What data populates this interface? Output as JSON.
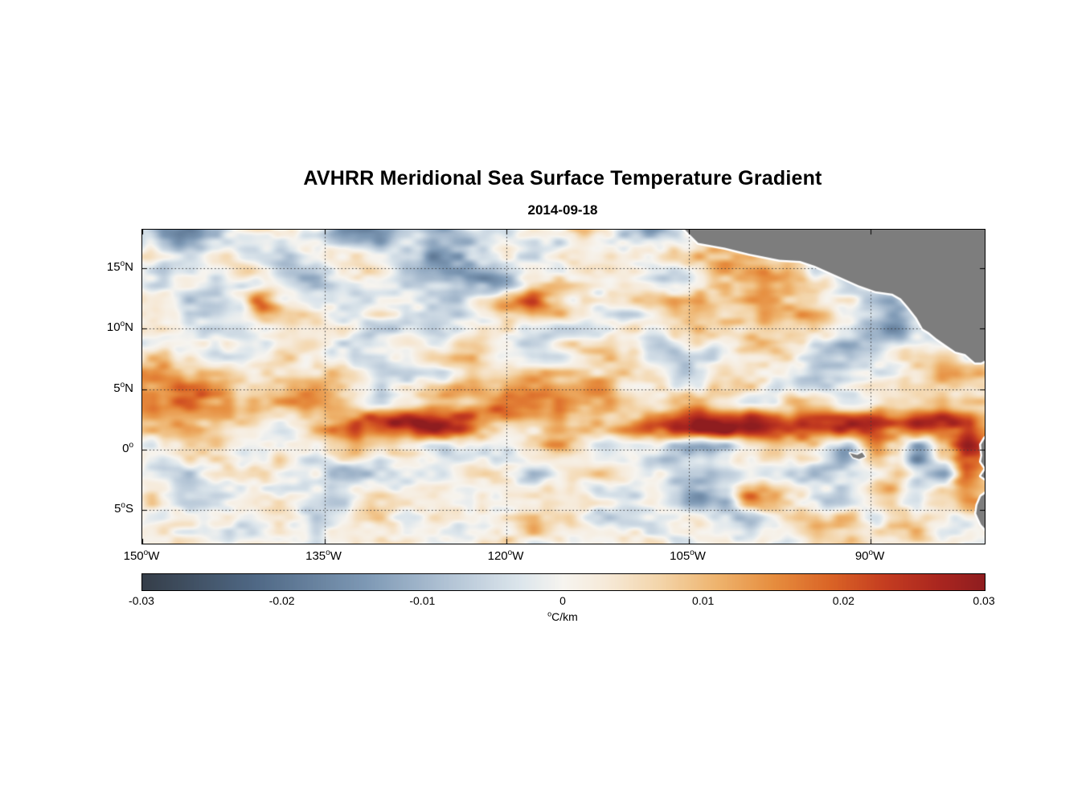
{
  "title": "AVHRR Meridional Sea Surface Temperature Gradient",
  "subtitle": "2014-09-18",
  "chart_data": {
    "type": "heatmap",
    "title": "AVHRR Meridional Sea Surface Temperature Gradient",
    "date": "2014-09-18",
    "unit": "°C/km",
    "lon_range": [
      -150,
      -80.6
    ],
    "lat_range": [
      -7.8,
      18.2
    ],
    "x_ticks": [
      {
        "lon": -150,
        "num": "150",
        "sup": "o",
        "hem": "W"
      },
      {
        "lon": -135,
        "num": "135",
        "sup": "o",
        "hem": "W"
      },
      {
        "lon": -120,
        "num": "120",
        "sup": "o",
        "hem": "W"
      },
      {
        "lon": -105,
        "num": "105",
        "sup": "o",
        "hem": "W"
      },
      {
        "lon": -90,
        "num": "90",
        "sup": "o",
        "hem": "W"
      }
    ],
    "y_ticks": [
      {
        "lat": 15,
        "num": "15",
        "sup": "o",
        "hem": "N"
      },
      {
        "lat": 10,
        "num": "10",
        "sup": "o",
        "hem": "N"
      },
      {
        "lat": 5,
        "num": "5",
        "sup": "o",
        "hem": "N"
      },
      {
        "lat": 0,
        "num": "0",
        "sup": "o",
        "hem": ""
      },
      {
        "lat": -5,
        "num": "5",
        "sup": "o",
        "hem": "S"
      }
    ],
    "colorbar": {
      "min": -0.03,
      "max": 0.03,
      "tick_values": [
        -0.03,
        -0.02,
        -0.01,
        0,
        0.01,
        0.02,
        0.03
      ],
      "tick_labels": [
        "-0.03",
        "-0.02",
        "-0.01",
        "0",
        "0.01",
        "0.02",
        "0.03"
      ],
      "unit_sup": "o",
      "unit_text": "C/km"
    },
    "colormap_stops": [
      {
        "v": -0.03,
        "c": "#353e49"
      },
      {
        "v": -0.022,
        "c": "#4f6885"
      },
      {
        "v": -0.014,
        "c": "#7e99b5"
      },
      {
        "v": -0.008,
        "c": "#b4c5d6"
      },
      {
        "v": -0.003,
        "c": "#dde6ec"
      },
      {
        "v": 0.0,
        "c": "#f6f4ef"
      },
      {
        "v": 0.003,
        "c": "#f6ead9"
      },
      {
        "v": 0.007,
        "c": "#f3d4a8"
      },
      {
        "v": 0.011,
        "c": "#eeb36d"
      },
      {
        "v": 0.015,
        "c": "#e68d3e"
      },
      {
        "v": 0.019,
        "c": "#da6426"
      },
      {
        "v": 0.023,
        "c": "#c43c20"
      },
      {
        "v": 0.027,
        "c": "#a8251f"
      },
      {
        "v": 0.03,
        "c": "#8f1d1f"
      }
    ],
    "land_color": "#7d7d7d",
    "coastline_color": "#ffffff",
    "gridline_color": "#3c3c3c",
    "grid": {
      "lon_start": -150,
      "lon_step": 2,
      "lat_start": 18,
      "lat_step": -2,
      "cols": 36,
      "rows": 14,
      "scale": 0.001,
      "values": [
        [
          -2,
          -12,
          -14,
          -6,
          0,
          2,
          -2,
          -6,
          -10,
          -14,
          -12,
          -8,
          -10,
          -12,
          -6,
          0,
          4,
          2,
          8,
          2,
          -8,
          -10,
          -4,
          0,
          0,
          0,
          0,
          0,
          0,
          0,
          0,
          0,
          0,
          0,
          0,
          0
        ],
        [
          0,
          -6,
          -8,
          -2,
          2,
          0,
          -4,
          -2,
          2,
          4,
          -2,
          -8,
          -14,
          -10,
          -2,
          2,
          0,
          -2,
          4,
          6,
          2,
          -2,
          4,
          8,
          12,
          6,
          0,
          0,
          0,
          0,
          0,
          0,
          0,
          0,
          0,
          0
        ],
        [
          2,
          -2,
          -4,
          0,
          4,
          -2,
          -8,
          -6,
          0,
          2,
          -2,
          -4,
          -8,
          -12,
          -14,
          -8,
          0,
          4,
          2,
          -2,
          0,
          2,
          -2,
          2,
          6,
          10,
          12,
          6,
          4,
          0,
          0,
          0,
          0,
          0,
          0,
          0
        ],
        [
          0,
          2,
          -4,
          -10,
          -6,
          18,
          6,
          -2,
          0,
          -2,
          2,
          4,
          -2,
          -6,
          2,
          14,
          20,
          10,
          2,
          -2,
          0,
          4,
          10,
          12,
          10,
          8,
          12,
          10,
          4,
          0,
          -6,
          -12,
          0,
          0,
          0,
          0
        ],
        [
          -2,
          0,
          2,
          -2,
          -4,
          0,
          4,
          2,
          -2,
          -4,
          -2,
          0,
          -4,
          -2,
          0,
          2,
          -2,
          -4,
          -2,
          0,
          2,
          0,
          4,
          8,
          10,
          6,
          10,
          12,
          8,
          4,
          -10,
          -16,
          -6,
          0,
          0,
          0
        ],
        [
          2,
          4,
          0,
          -4,
          -2,
          2,
          6,
          4,
          0,
          -2,
          -4,
          -2,
          2,
          4,
          6,
          2,
          -2,
          0,
          4,
          6,
          2,
          -4,
          -6,
          -2,
          2,
          6,
          4,
          -2,
          -8,
          -12,
          -4,
          6,
          10,
          4,
          0,
          0
        ],
        [
          10,
          12,
          14,
          12,
          10,
          8,
          6,
          8,
          10,
          4,
          -4,
          -6,
          0,
          4,
          8,
          10,
          12,
          10,
          8,
          10,
          6,
          0,
          -4,
          2,
          8,
          6,
          0,
          -6,
          -8,
          -2,
          4,
          2,
          6,
          10,
          12,
          8
        ],
        [
          14,
          16,
          18,
          16,
          12,
          10,
          12,
          14,
          10,
          2,
          -2,
          2,
          8,
          12,
          16,
          20,
          22,
          18,
          14,
          16,
          12,
          6,
          10,
          12,
          8,
          2,
          -2,
          6,
          4,
          -2,
          -4,
          2,
          6,
          4,
          2,
          4
        ],
        [
          8,
          10,
          12,
          10,
          8,
          6,
          4,
          8,
          14,
          20,
          26,
          30,
          28,
          22,
          12,
          8,
          10,
          14,
          10,
          6,
          14,
          22,
          26,
          28,
          30,
          28,
          26,
          24,
          26,
          28,
          24,
          18,
          26,
          28,
          22,
          12
        ],
        [
          2,
          4,
          6,
          4,
          2,
          0,
          -2,
          2,
          6,
          10,
          8,
          4,
          -2,
          -6,
          -4,
          0,
          6,
          10,
          4,
          0,
          6,
          2,
          -8,
          -12,
          -6,
          2,
          8,
          6,
          -4,
          -8,
          10,
          4,
          -14,
          8,
          26,
          18
        ],
        [
          0,
          -2,
          -4,
          -2,
          0,
          2,
          0,
          -4,
          -8,
          -10,
          -8,
          -4,
          0,
          2,
          4,
          0,
          -4,
          -2,
          0,
          4,
          2,
          -2,
          -6,
          -4,
          0,
          2,
          -4,
          -8,
          -6,
          -2,
          2,
          6,
          -10,
          -16,
          22,
          10
        ],
        [
          2,
          0,
          -2,
          0,
          2,
          4,
          2,
          0,
          -2,
          0,
          2,
          0,
          -2,
          -4,
          -2,
          0,
          2,
          4,
          0,
          -4,
          -2,
          0,
          -6,
          -14,
          -10,
          12,
          10,
          2,
          -6,
          -2,
          4,
          8,
          2,
          6,
          14,
          8
        ],
        [
          0,
          2,
          0,
          -2,
          0,
          2,
          0,
          -2,
          0,
          2,
          4,
          2,
          0,
          -2,
          0,
          4,
          8,
          6,
          2,
          -4,
          -6,
          -2,
          0,
          2,
          -2,
          -4,
          0,
          4,
          8,
          6,
          2,
          8,
          10,
          4,
          -2,
          0
        ],
        [
          0,
          0,
          2,
          0,
          -2,
          0,
          2,
          0,
          -2,
          0,
          2,
          0,
          -2,
          0,
          2,
          4,
          2,
          0,
          -2,
          0,
          2,
          0,
          -2,
          0,
          2,
          0,
          -2,
          0,
          4,
          6,
          2,
          4,
          6,
          2,
          0,
          0
        ]
      ]
    },
    "noise": {
      "oct1": {
        "sx": 2.6,
        "sy": 1.2,
        "amp": 6
      },
      "oct2": {
        "sx": 1.05,
        "sy": 0.6,
        "amp": 3.5
      },
      "amp_scale": 0.001
    },
    "land_polygons": {
      "central_america": [
        [
          -105.4,
          18.3
        ],
        [
          -104.2,
          17.1
        ],
        [
          -102,
          16.7
        ],
        [
          -100,
          16.2
        ],
        [
          -97.5,
          15.7
        ],
        [
          -95.8,
          15.6
        ],
        [
          -94.6,
          15.2
        ],
        [
          -93,
          14.5
        ],
        [
          -91,
          13.6
        ],
        [
          -89.6,
          13.1
        ],
        [
          -88.2,
          12.9
        ],
        [
          -87.5,
          12.5
        ],
        [
          -86.9,
          11.8
        ],
        [
          -86.2,
          10.9
        ],
        [
          -85.7,
          10
        ],
        [
          -85.2,
          9.7
        ],
        [
          -84.6,
          9.2
        ],
        [
          -83.6,
          8.5
        ],
        [
          -83,
          8.1
        ],
        [
          -82.2,
          7.9
        ],
        [
          -81.4,
          7.2
        ],
        [
          -80.9,
          7.2
        ],
        [
          -80.3,
          7.5
        ],
        [
          -79.9,
          8.2
        ],
        [
          -79.3,
          8.6
        ],
        [
          -78.6,
          8.2
        ],
        [
          -78,
          7.6
        ],
        [
          -77.6,
          6.5
        ],
        [
          -76,
          5
        ],
        [
          -74,
          19
        ],
        [
          -106.5,
          19
        ]
      ],
      "south_america": [
        [
          -80,
          1.5
        ],
        [
          -80.6,
          0.9
        ],
        [
          -80.9,
          0.4
        ],
        [
          -80.8,
          -0.5
        ],
        [
          -80.9,
          -1
        ],
        [
          -80.5,
          -1.6
        ],
        [
          -80.9,
          -2.2
        ],
        [
          -80.3,
          -2.6
        ],
        [
          -79.8,
          -2.9
        ],
        [
          -80.2,
          -3.4
        ],
        [
          -80.9,
          -3.9
        ],
        [
          -81.2,
          -4.6
        ],
        [
          -81.3,
          -5.3
        ],
        [
          -80.9,
          -6.2
        ],
        [
          -80.2,
          -7
        ],
        [
          -79.6,
          -8.2
        ],
        [
          -74,
          -8.2
        ],
        [
          -74,
          1.5
        ]
      ],
      "galapagos": [
        [
          -91.7,
          -0.3
        ],
        [
          -91.1,
          -0.45
        ],
        [
          -90.7,
          -0.25
        ],
        [
          -90.45,
          -0.6
        ],
        [
          -90.95,
          -0.8
        ],
        [
          -91.45,
          -0.65
        ]
      ]
    }
  }
}
